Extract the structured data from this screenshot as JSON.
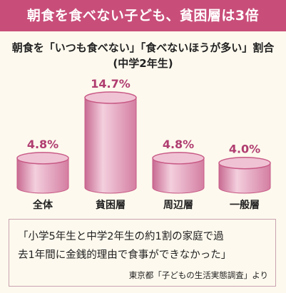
{
  "header": {
    "title": "朝食を食べない子ども、貧困層は3倍"
  },
  "subtitle": {
    "line1": "朝食を「いつも食べない」「食べないほうが多い」割合",
    "line2": "(中学2年生)"
  },
  "chart_data": {
    "type": "bar",
    "categories": [
      "全体",
      "貧困層",
      "周辺層",
      "一般層"
    ],
    "values": [
      4.8,
      14.7,
      4.8,
      4.0
    ],
    "value_labels": [
      "4.8%",
      "14.7%",
      "4.8%",
      "4.0%"
    ],
    "unit": "%",
    "ylim": [
      0,
      14.7
    ],
    "grid": false,
    "colors": {
      "label": "#b03d70",
      "body": "#d98aaa",
      "body_light": "#f5d3e0",
      "top": "#f0c3d4",
      "rim": "#c85a86"
    }
  },
  "note": {
    "line1": "「小学5年生と中学2年生の約1割の家庭で過",
    "line2": "去1年間に金銭的理由で食事ができなかった」",
    "source": "東京都「子どもの生活実態調査」より"
  }
}
